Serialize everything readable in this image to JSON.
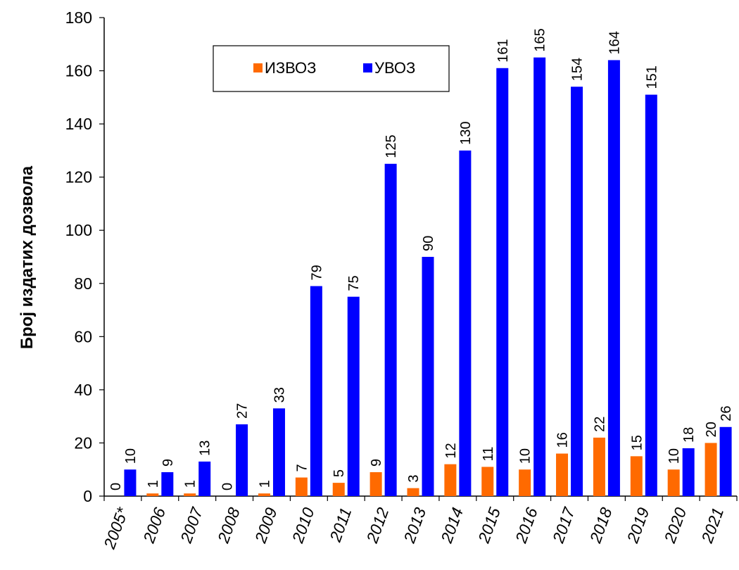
{
  "chart_data": {
    "type": "bar",
    "ylabel": "Број издатих дозвола",
    "xlabel": "",
    "ylim": [
      0,
      180
    ],
    "ytick_step": 20,
    "categories": [
      "2005*",
      "2006",
      "2007",
      "2008",
      "2009",
      "2010",
      "2011",
      "2012",
      "2013",
      "2014",
      "2015",
      "2016",
      "2017",
      "2018",
      "2019",
      "2020",
      "2021"
    ],
    "series": [
      {
        "name": "ИЗВОЗ",
        "color": "#ff6a00",
        "values": [
          0,
          1,
          1,
          0,
          1,
          7,
          5,
          9,
          3,
          12,
          11,
          10,
          16,
          22,
          15,
          10,
          20
        ]
      },
      {
        "name": "УВОЗ",
        "color": "#0000ff",
        "values": [
          10,
          9,
          13,
          27,
          33,
          79,
          75,
          125,
          90,
          130,
          161,
          165,
          154,
          164,
          151,
          18,
          26
        ]
      }
    ],
    "legend_position": "top-center",
    "grid": false
  }
}
